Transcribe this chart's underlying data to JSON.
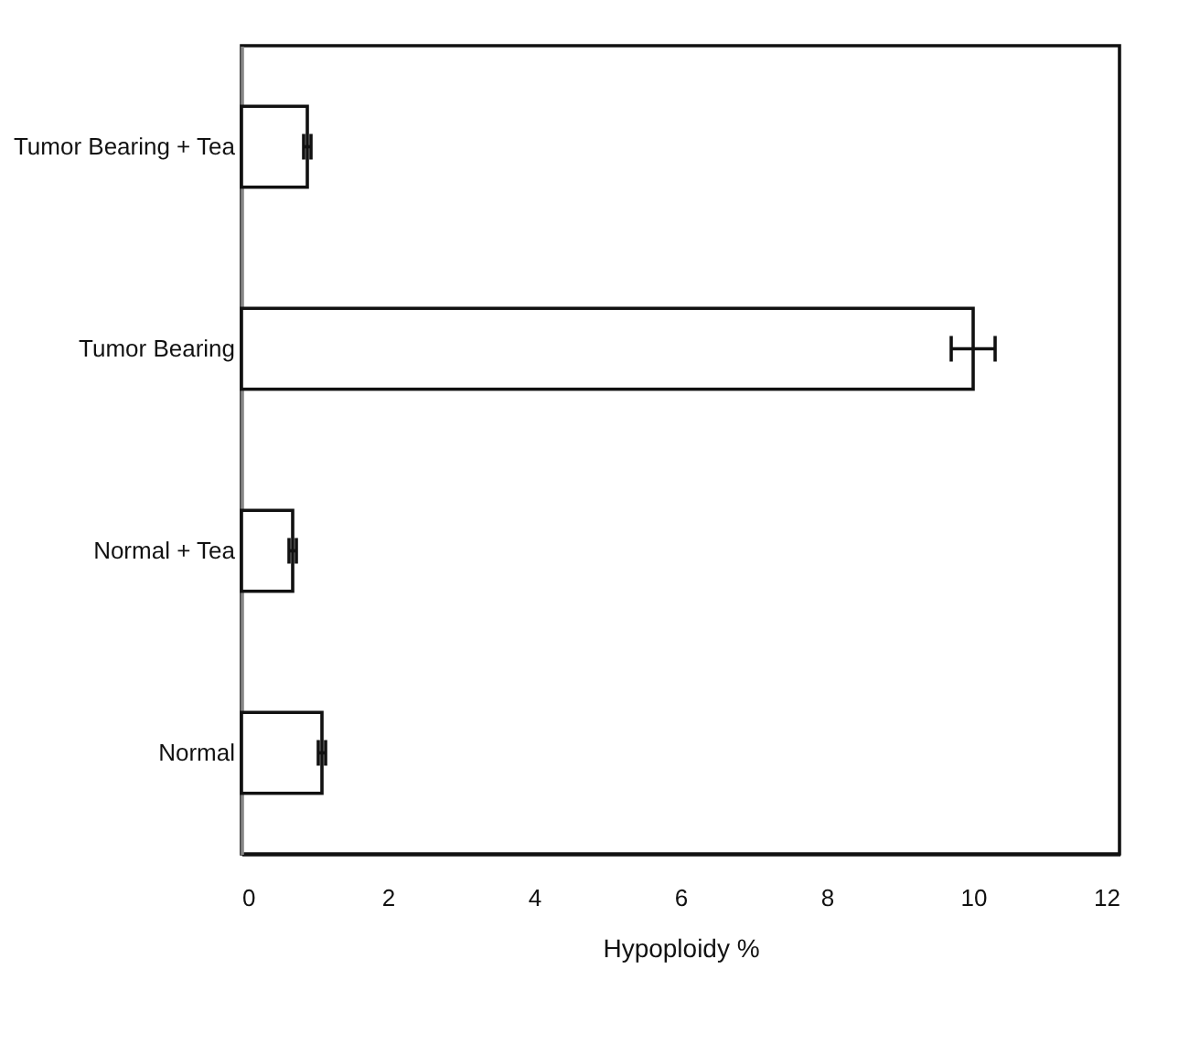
{
  "chart_data": {
    "type": "bar",
    "orientation": "horizontal",
    "xlabel": "Hypoploidy %",
    "categories": [
      "Tumor Bearing + Tea",
      "Tumor Bearing",
      "Normal + Tea",
      "Normal"
    ],
    "values": [
      0.9,
      10.0,
      0.7,
      1.1
    ],
    "errors": [
      0.05,
      0.3,
      0.05,
      0.05
    ],
    "color": "#ffffff",
    "xlim": [
      0,
      12
    ],
    "xticks": [
      0,
      2,
      4,
      6,
      8,
      10,
      12
    ],
    "grid": false
  }
}
